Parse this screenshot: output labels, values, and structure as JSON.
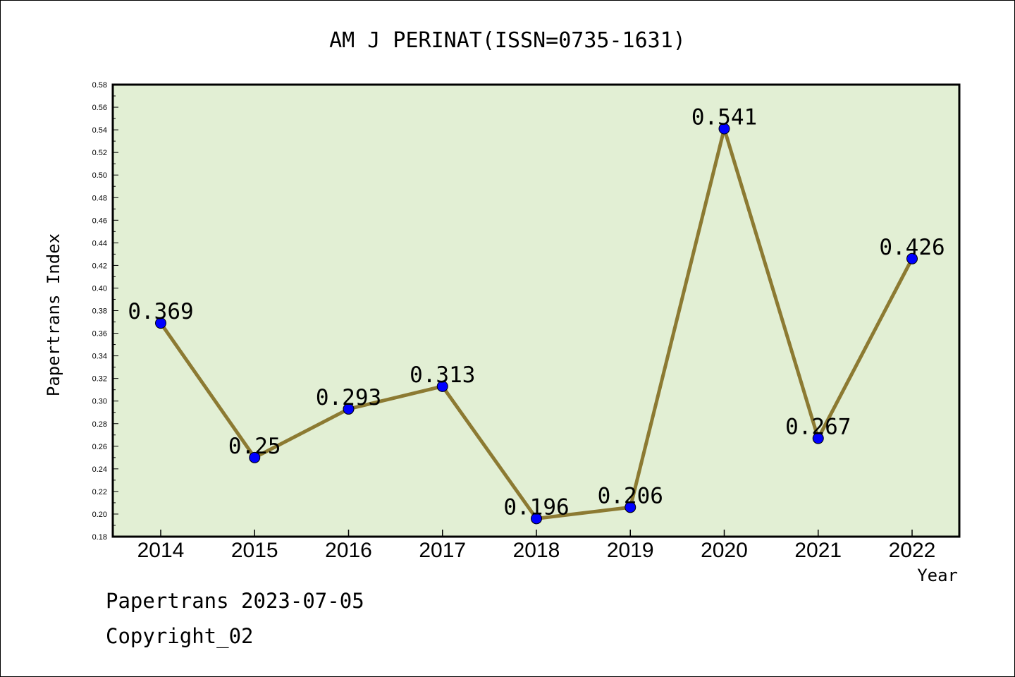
{
  "chart_data": {
    "type": "line",
    "title": "AM J PERINAT(ISSN=0735-1631)",
    "xlabel": "Year",
    "ylabel": "Papertrans Index",
    "categories": [
      "2014",
      "2015",
      "2016",
      "2017",
      "2018",
      "2019",
      "2020",
      "2021",
      "2022"
    ],
    "series": [
      {
        "values": [
          0.369,
          0.25,
          0.293,
          0.313,
          0.196,
          0.206,
          0.541,
          0.267,
          0.426
        ]
      }
    ],
    "data_labels": [
      "0.369",
      "0.25",
      "0.293",
      "0.313",
      "0.196",
      "0.206",
      "0.541",
      "0.267",
      "0.426"
    ],
    "ylim": [
      0.18,
      0.58
    ],
    "yticks": [
      "0.18",
      "0.20",
      "0.22",
      "0.24",
      "0.26",
      "0.28",
      "0.30",
      "0.32",
      "0.34",
      "0.36",
      "0.38",
      "0.40",
      "0.42",
      "0.44",
      "0.46",
      "0.48",
      "0.50",
      "0.52",
      "0.54",
      "0.56",
      "0.58"
    ],
    "grid": false,
    "legend": "none",
    "colors": {
      "plot_background": "#e2efd4",
      "line": "#8c7a32",
      "marker": "#0000ff"
    }
  },
  "footer": {
    "line1": "Papertrans 2023-07-05",
    "line2": "Copyright_02"
  }
}
